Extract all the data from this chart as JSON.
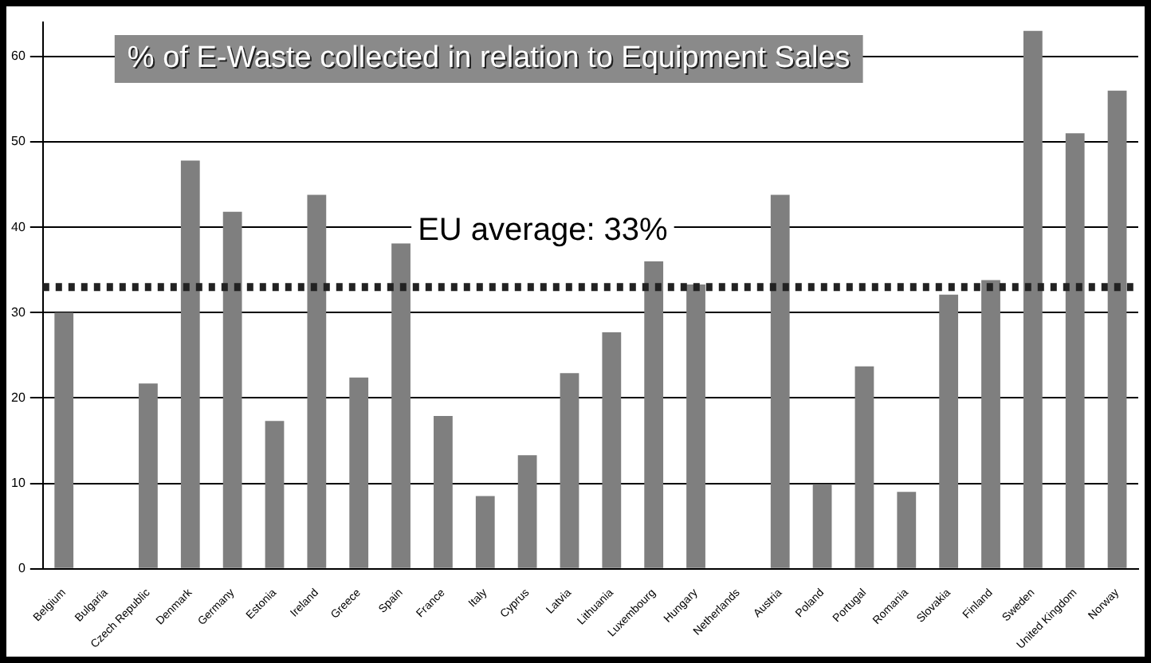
{
  "chart_data": {
    "type": "bar",
    "title": "% of E-Waste collected in relation to Equipment Sales",
    "categories": [
      "Belgium",
      "Bulgaria",
      "Czech Republic",
      "Denmark",
      "Germany",
      "Estonia",
      "Ireland",
      "Greece",
      "Spain",
      "France",
      "Italy",
      "Cyprus",
      "Latvia",
      "Lithuania",
      "Luxembourg",
      "Hungary",
      "Netherlands",
      "Austria",
      "Poland",
      "Portugal",
      "Romania",
      "Slovakia",
      "Finland",
      "Sweden",
      "United Kingdom",
      "Norway"
    ],
    "values": [
      30,
      null,
      21.7,
      47.8,
      41.8,
      17.3,
      43.8,
      22.4,
      38.1,
      17.9,
      8.5,
      13.3,
      22.9,
      27.7,
      36,
      33.3,
      null,
      43.8,
      9.9,
      23.7,
      9,
      32.1,
      33.8,
      63,
      51,
      56
    ],
    "color": "#7f7f7f",
    "ylim": [
      0,
      64
    ],
    "yticks": [
      0,
      10,
      20,
      30,
      40,
      50,
      60
    ],
    "grid": "y",
    "ref_lines": [
      {
        "axis": "y",
        "value": 33,
        "label": "EU average: 33%",
        "color": "#222222",
        "line_style": "dotted"
      }
    ]
  }
}
